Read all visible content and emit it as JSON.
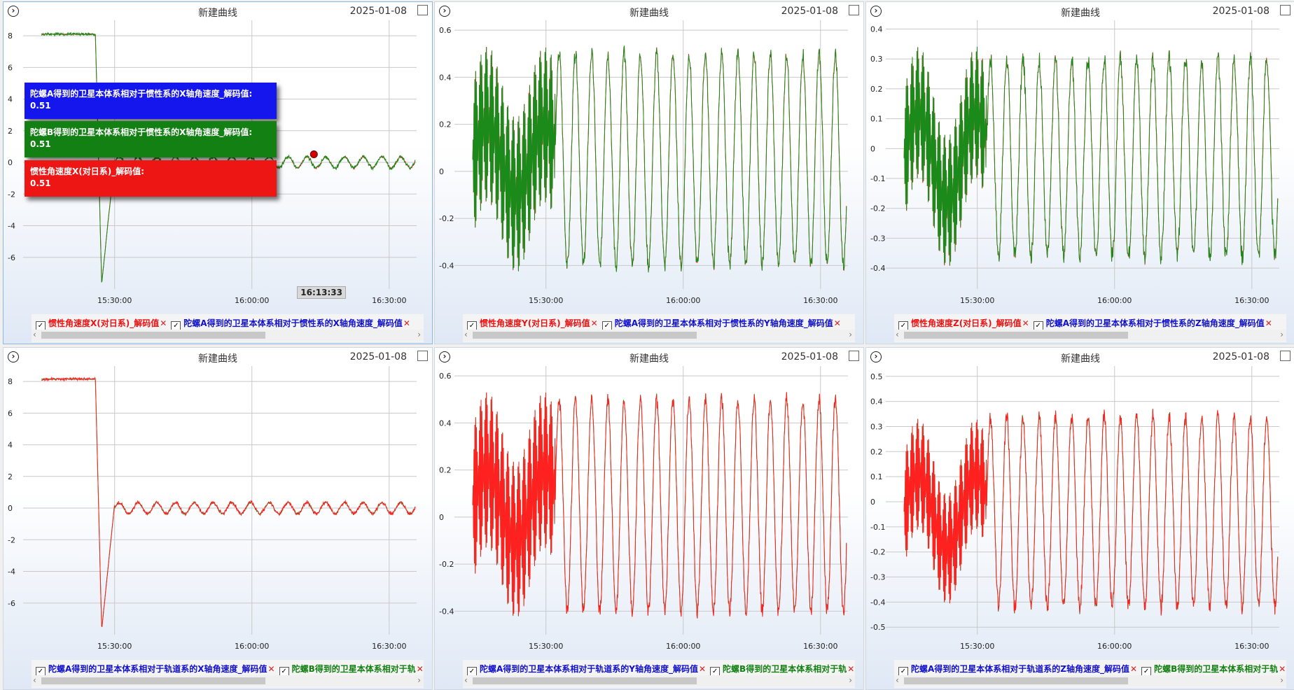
{
  "colors": {
    "green": "#1a8a1a",
    "red": "#ff2020",
    "blue": "#1515dd",
    "grid": "#c9c9c9"
  },
  "tooltips": [
    {
      "label": "陀螺A得到的卫星本体系相对于惯性系的X轴角速度_解码值:",
      "value": "0.51",
      "color": "#1515ee"
    },
    {
      "label": "陀螺B得到的卫星本体系相对于惯性系的X轴角速度_解码值:",
      "value": "0.51",
      "color": "#128012"
    },
    {
      "label": "惯性角速度X(对日系)_解码值:",
      "value": "0.51",
      "color": "#ee1515"
    }
  ],
  "cursor_time": "16:13:33",
  "panels": [
    {
      "title": "新建曲线",
      "date": "2025-01-08",
      "expand_icon": "›",
      "legend": [
        {
          "label": "惯性角速度X(对日系)_解码值",
          "color": "#ee1111"
        },
        {
          "label": "陀螺A得到的卫星本体系相对于惯性系的X轴角速度_解码值",
          "color": "#1111cc"
        }
      ]
    },
    {
      "title": "新建曲线",
      "date": "2025-01-08",
      "expand_icon": "›",
      "legend": [
        {
          "label": "惯性角速度Y(对日系)_解码值",
          "color": "#ee1111"
        },
        {
          "label": "陀螺A得到的卫星本体系相对于惯性系的Y轴角速度_解码值",
          "color": "#1111cc"
        }
      ]
    },
    {
      "title": "新建曲线",
      "date": "2025-01-08",
      "expand_icon": "›",
      "legend": [
        {
          "label": "惯性角速度Z(对日系)_解码值",
          "color": "#ee1111"
        },
        {
          "label": "陀螺A得到的卫星本体系相对于惯性系的Z轴角速度_解码值",
          "color": "#1111cc"
        }
      ]
    },
    {
      "title": "新建曲线",
      "date": "2025-01-08",
      "expand_icon": "›",
      "legend": [
        {
          "label": "陀螺A得到的卫星本体系相对于轨道系的X轴角速度_解码值",
          "color": "#1111cc"
        },
        {
          "label": "陀螺B得到的卫星本体系相对于轨",
          "color": "#128012"
        }
      ]
    },
    {
      "title": "新建曲线",
      "date": "2025-01-08",
      "expand_icon": "›",
      "legend": [
        {
          "label": "陀螺A得到的卫星本体系相对于轨道系的Y轴角速度_解码值",
          "color": "#1111cc"
        },
        {
          "label": "陀螺B得到的卫星本体系相对于轨",
          "color": "#128012"
        }
      ]
    },
    {
      "title": "新建曲线",
      "date": "2025-01-08",
      "expand_icon": "›",
      "legend": [
        {
          "label": "陀螺A得到的卫星本体系相对于轨道系的Z轴角速度_解码值",
          "color": "#1111cc"
        },
        {
          "label": "陀螺B得到的卫星本体系相对于轨",
          "color": "#128012"
        }
      ]
    }
  ],
  "chart_data": [
    {
      "type": "line",
      "x_ticks": [
        "15:30:00",
        "16:00:00",
        "16:30:00"
      ],
      "y_ticks": [
        "8",
        "6",
        "4",
        "2",
        "0",
        "-2",
        "-4",
        "-6"
      ],
      "ylim": [
        -8,
        8.8
      ],
      "x_range": [
        "15:10:00",
        "16:36:00"
      ],
      "grid": true,
      "pattern": "stepX",
      "front_color": "#1a8a1a",
      "back_color": "#ff2020",
      "series": [
        {
          "name": "惯性角速度X(对日系)_解码值",
          "values_note": "hidden"
        },
        {
          "name": "陀螺A得到的卫星本体系相对于惯性系的X轴角速度_解码值"
        }
      ]
    },
    {
      "type": "line",
      "x_ticks": [
        "15:30:00",
        "16:00:00",
        "16:30:00"
      ],
      "y_ticks": [
        "0.6",
        "0.4",
        "0.2",
        "0",
        "-0.2",
        "-0.4"
      ],
      "ylim": [
        -0.5,
        0.63
      ],
      "x_range": [
        "15:10:00",
        "16:36:00"
      ],
      "grid": true,
      "pattern": "oscY",
      "front_color": "#1a8a1a",
      "back_color": "#ff2020",
      "series": [
        {
          "name": "惯性角速度Y(对日系)_解码值"
        },
        {
          "name": "陀螺A得到的卫星本体系相对于惯性系的Y轴角速度_解码值"
        }
      ]
    },
    {
      "type": "line",
      "x_ticks": [
        "15:30:00",
        "16:00:00",
        "16:30:00"
      ],
      "y_ticks": [
        "0.4",
        "0.3",
        "0.2",
        "0.1",
        "0",
        "-0.1",
        "-0.2",
        "-0.3",
        "-0.4"
      ],
      "ylim": [
        -0.47,
        0.42
      ],
      "x_range": [
        "15:10:00",
        "16:36:00"
      ],
      "grid": true,
      "pattern": "oscZ",
      "front_color": "#1a8a1a",
      "back_color": "#ff2020",
      "series": [
        {
          "name": "惯性角速度Z(对日系)_解码值"
        },
        {
          "name": "陀螺A得到的卫星本体系相对于惯性系的Z轴角速度_解码值"
        }
      ]
    },
    {
      "type": "line",
      "x_ticks": [
        "15:30:00",
        "16:00:00",
        "16:30:00"
      ],
      "y_ticks": [
        "8",
        "6",
        "4",
        "2",
        "0",
        "-2",
        "-4",
        "-6"
      ],
      "ylim": [
        -8,
        8.8
      ],
      "x_range": [
        "15:10:00",
        "16:36:00"
      ],
      "grid": true,
      "pattern": "stepX2",
      "front_color": "#ff2020",
      "back_color": "#1a8a1a",
      "series": [
        {
          "name": "陀螺A得到的卫星本体系相对于轨道系的X轴角速度_解码值"
        },
        {
          "name": "陀螺B得到的卫星本体系相对于轨"
        }
      ]
    },
    {
      "type": "line",
      "x_ticks": [
        "15:30:00",
        "16:00:00",
        "16:30:00"
      ],
      "y_ticks": [
        "0.6",
        "0.4",
        "0.2",
        "0",
        "-0.2",
        "-0.4"
      ],
      "ylim": [
        -0.5,
        0.63
      ],
      "x_range": [
        "15:10:00",
        "16:36:00"
      ],
      "grid": true,
      "pattern": "oscY",
      "front_color": "#ff2020",
      "back_color": "#1a8a1a",
      "series": [
        {
          "name": "陀螺A得到的卫星本体系相对于轨道系的Y轴角速度_解码值"
        },
        {
          "name": "陀螺B得到的卫星本体系相对于轨"
        }
      ]
    },
    {
      "type": "line",
      "x_ticks": [
        "15:30:00",
        "16:00:00",
        "16:30:00"
      ],
      "y_ticks": [
        "0.5",
        "0.4",
        "0.3",
        "0.2",
        "0.1",
        "0",
        "-0.1",
        "-0.2",
        "-0.3",
        "-0.4",
        "-0.5"
      ],
      "ylim": [
        -0.53,
        0.53
      ],
      "x_range": [
        "15:10:00",
        "16:36:00"
      ],
      "grid": true,
      "pattern": "oscZ2",
      "front_color": "#ff2020",
      "back_color": "#1a8a1a",
      "series": [
        {
          "name": "陀螺A得到的卫星本体系相对于轨道系的Z轴角速度_解码值"
        },
        {
          "name": "陀螺B得到的卫星本体系相对于轨"
        }
      ]
    }
  ]
}
